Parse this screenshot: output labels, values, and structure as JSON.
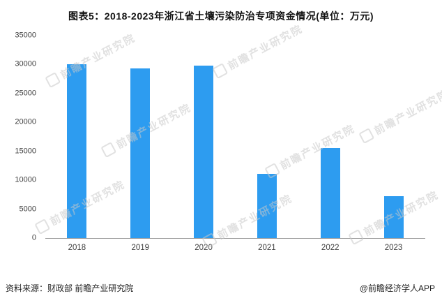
{
  "title": "图表5：2018-2023年浙江省土壤污染防治专项资金情况(单位：万元)",
  "chart_data": {
    "type": "bar",
    "categories": [
      "2018",
      "2019",
      "2020",
      "2021",
      "2022",
      "2023"
    ],
    "values": [
      30100,
      29300,
      29800,
      11100,
      15600,
      7200
    ],
    "title": "图表5：2018-2023年浙江省土壤污染防治专项资金情况(单位：万元)",
    "xlabel": "",
    "ylabel": "",
    "ylim": [
      0,
      35000
    ],
    "yticks": [
      0,
      5000,
      10000,
      15000,
      20000,
      25000,
      30000,
      35000
    ],
    "bar_color": "#2D9CF0",
    "grid": false,
    "legend": "none"
  },
  "watermark": {
    "text": "前瞻产业研究院"
  },
  "footer": {
    "source": "资料来源：财政部 前瞻产业研究院",
    "credit": "@前瞻经济学人APP"
  }
}
